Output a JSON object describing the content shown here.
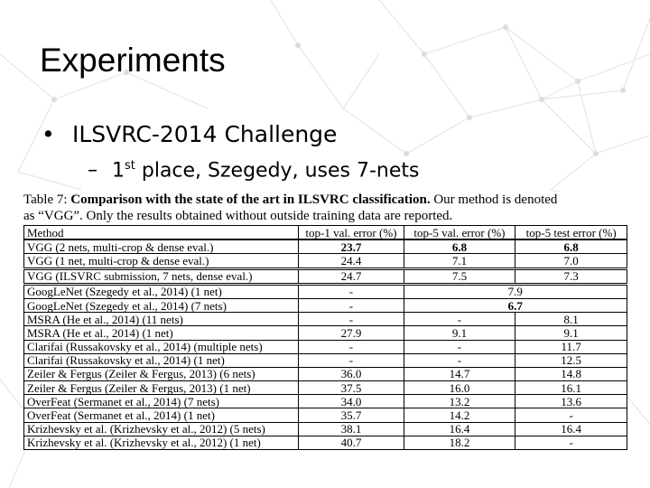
{
  "slide": {
    "title": "Experiments",
    "bullet": "ILSVRC-2014 Challenge",
    "sub_bullet_prefix": "1",
    "sub_bullet_sup": "st",
    "sub_bullet_rest": " place, Szegedy, uses 7-nets"
  },
  "caption": {
    "label": "Table 7:",
    "bold_text": "Comparison with the state of the art in ILSVRC classification.",
    "rest_line1": " Our method is denoted",
    "line2": "as “VGG”. Only the results obtained without outside training data are reported."
  },
  "table": {
    "headers": [
      "Method",
      "top-1 val. error (%)",
      "top-5 val. error (%)",
      "top-5 test error (%)"
    ],
    "rows": [
      {
        "method": "VGG (2 nets, multi-crop & dense eval.)",
        "top1": "23.7",
        "top5val": "6.8",
        "top5test": "6.8",
        "bold": true
      },
      {
        "method": "VGG (1 net, multi-crop & dense eval.)",
        "top1": "24.4",
        "top5val": "7.1",
        "top5test": "7.0"
      },
      {
        "method": "VGG (ILSVRC submission, 7 nets, dense eval.)",
        "top1": "24.7",
        "top5val": "7.5",
        "top5test": "7.3"
      },
      {
        "method": "GoogLeNet (Szegedy et al., 2014) (1 net)",
        "top1": "-",
        "top5merged": "7.9"
      },
      {
        "method": "GoogLeNet (Szegedy et al., 2014) (7 nets)",
        "top1": "-",
        "top5merged": "6.7",
        "bold_merged": true
      },
      {
        "method": "MSRA (He et al., 2014) (11 nets)",
        "top1": "-",
        "top5val": "-",
        "top5test": "8.1"
      },
      {
        "method": "MSRA (He et al., 2014) (1 net)",
        "top1": "27.9",
        "top5val": "9.1",
        "top5test": "9.1"
      },
      {
        "method": "Clarifai (Russakovsky et al., 2014) (multiple nets)",
        "top1": "-",
        "top5val": "-",
        "top5test": "11.7"
      },
      {
        "method": "Clarifai (Russakovsky et al., 2014) (1 net)",
        "top1": "-",
        "top5val": "-",
        "top5test": "12.5"
      },
      {
        "method": "Zeiler & Fergus (Zeiler & Fergus, 2013) (6 nets)",
        "top1": "36.0",
        "top5val": "14.7",
        "top5test": "14.8"
      },
      {
        "method": "Zeiler & Fergus (Zeiler & Fergus, 2013) (1 net)",
        "top1": "37.5",
        "top5val": "16.0",
        "top5test": "16.1"
      },
      {
        "method": "OverFeat (Sermanet et al., 2014) (7 nets)",
        "top1": "34.0",
        "top5val": "13.2",
        "top5test": "13.6"
      },
      {
        "method": "OverFeat (Sermanet et al., 2014) (1 net)",
        "top1": "35.7",
        "top5val": "14.2",
        "top5test": "-"
      },
      {
        "method": "Krizhevsky et al. (Krizhevsky et al., 2012) (5 nets)",
        "top1": "38.1",
        "top5val": "16.4",
        "top5test": "16.4"
      },
      {
        "method": "Krizhevsky et al. (Krizhevsky et al., 2012) (1 net)",
        "top1": "40.7",
        "top5val": "18.2",
        "top5test": "-"
      }
    ]
  },
  "colors": {
    "background": "#ffffff",
    "network_lines": "#e6e6e6",
    "text": "#000000"
  }
}
